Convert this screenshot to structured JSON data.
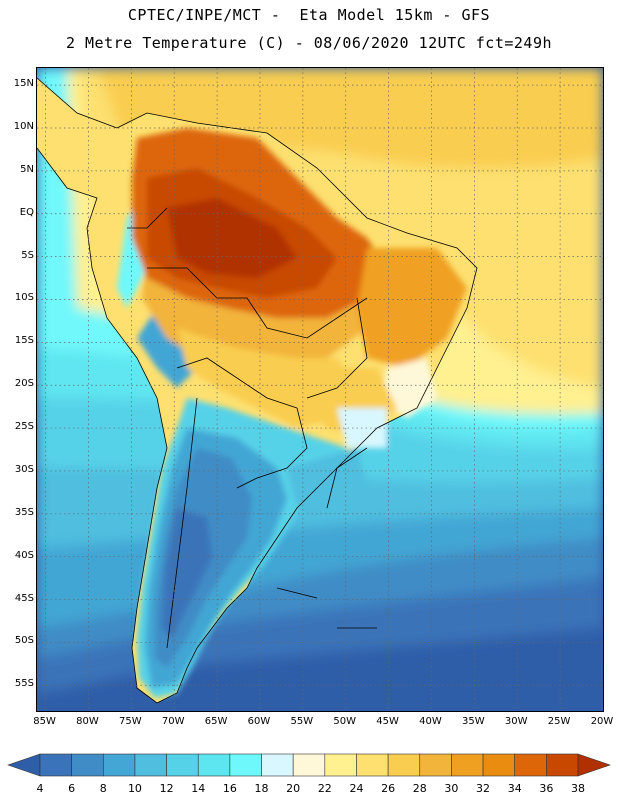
{
  "title_line1": "CPTEC/INPE/MCT -  Eta Model 15km - GFS",
  "title_line2": "2 Metre Temperature (C) - 08/06/2020 12UTC fct=249h",
  "map": {
    "region": "South America",
    "lat_labels": [
      "15N",
      "10N",
      "5N",
      "EQ",
      "5S",
      "10S",
      "15S",
      "20S",
      "25S",
      "30S",
      "35S",
      "40S",
      "45S",
      "50S",
      "55S"
    ],
    "lat_values": [
      15,
      10,
      5,
      0,
      -5,
      -10,
      -15,
      -20,
      -25,
      -30,
      -35,
      -40,
      -45,
      -50,
      -55
    ],
    "lon_labels": [
      "85W",
      "80W",
      "75W",
      "70W",
      "65W",
      "60W",
      "55W",
      "50W",
      "45W",
      "40W",
      "35W",
      "30W",
      "25W",
      "20W"
    ],
    "lon_values": [
      -85,
      -80,
      -75,
      -70,
      -65,
      -60,
      -55,
      -50,
      -45,
      -40,
      -35,
      -30,
      -25,
      -20
    ],
    "lat_range": [
      -58,
      17
    ],
    "lon_range": [
      -86,
      -20
    ]
  },
  "colorbar": {
    "labels": [
      "4",
      "6",
      "8",
      "10",
      "12",
      "14",
      "16",
      "18",
      "20",
      "22",
      "24",
      "26",
      "28",
      "30",
      "32",
      "34",
      "36",
      "38"
    ],
    "colors": [
      "#2f5ea9",
      "#3a73b9",
      "#3f8cc6",
      "#43a6d4",
      "#4fbedf",
      "#56d2e8",
      "#5ee6f0",
      "#6ff8fb",
      "#d8f7ff",
      "#fff8d8",
      "#fff090",
      "#fde070",
      "#f9cd50",
      "#f2b43a",
      "#f0a020",
      "#e98c10",
      "#dd6608",
      "#c84800",
      "#b03000"
    ]
  }
}
